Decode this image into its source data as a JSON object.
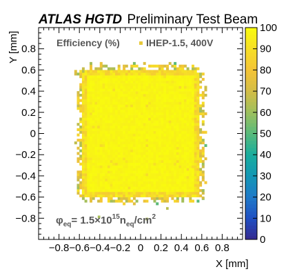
{
  "chart_data": {
    "type": "heatmap",
    "title_bold": "ATLAS HGTD",
    "title_rest": "Preliminary Test Beam",
    "legend_title": "Efficiency (%)",
    "legend_entry": "IHEP-1.5, 400V",
    "legend_marker_color": "#e8c93a",
    "xlabel": "X [mm]",
    "ylabel": "Y [mm]",
    "xlim": [
      -1.0,
      1.0
    ],
    "ylim": [
      -1.0,
      1.0
    ],
    "zlim": [
      0,
      100
    ],
    "x_ticks": [
      -0.8,
      -0.6,
      -0.4,
      -0.2,
      0,
      0.2,
      0.4,
      0.6,
      0.8
    ],
    "x_tick_labels": [
      "−0.8",
      "−0.6",
      "−0.4",
      "−0.2",
      "0",
      "0.2",
      "0.4",
      "0.6",
      "0.8"
    ],
    "y_ticks": [
      0.8,
      0.6,
      0.4,
      0.2,
      0,
      -0.2,
      -0.4,
      -0.6,
      -0.8
    ],
    "y_tick_labels": [
      "0.8",
      "0.6",
      "0.4",
      "0.2",
      "0",
      "−0.2",
      "−0.4",
      "−0.6",
      "−0.8"
    ],
    "z_ticks": [
      0,
      10,
      20,
      30,
      40,
      50,
      60,
      70,
      80,
      90,
      100
    ],
    "z_tick_labels": [
      "0",
      "10",
      "20",
      "30",
      "40",
      "50",
      "60",
      "70",
      "80",
      "90",
      "100"
    ],
    "fluence": {
      "phi": "φ",
      "sub_eq": "eq",
      "mid": "= 1.5×10",
      "exp": "15",
      "n": "n",
      "unit": "/cm",
      "unit_exp": "2"
    },
    "region": {
      "description": "near-uniform high-efficiency square pad",
      "x_range": [
        -0.58,
        0.58
      ],
      "y_range": [
        -0.6,
        0.6
      ],
      "core_efficiency": 99,
      "edge_efficiency_range": [
        60,
        92
      ]
    },
    "colormap": [
      "#35298f",
      "#1f4fc2",
      "#1f79c9",
      "#1497b5",
      "#19ad9e",
      "#58b97b",
      "#9dbf5d",
      "#d3bd47",
      "#f4c437",
      "#f6df27",
      "#f9fb0e"
    ]
  }
}
